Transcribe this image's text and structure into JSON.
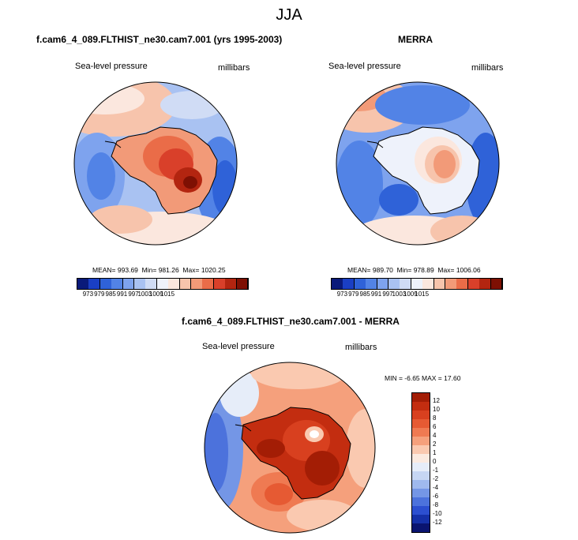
{
  "figure": {
    "title": "JJA"
  },
  "panels": [
    {
      "title": "f.cam6_4_089.FLTHIST_ne30.cam7.001 (yrs 1995-2003)",
      "variable": "Sea-level pressure",
      "units": "millibars",
      "stats": {
        "mean_label": "MEAN=",
        "mean": "993.69",
        "min_label": "Min=",
        "min": "981.26",
        "max_label": "Max=",
        "max": "1020.25"
      }
    },
    {
      "title": "MERRA",
      "variable": "Sea-level pressure",
      "units": "millibars",
      "stats": {
        "mean_label": "MEAN=",
        "mean": "989.70",
        "min_label": "Min=",
        "min": "978.89",
        "max_label": "Max=",
        "max": "1006.06"
      }
    },
    {
      "title": "f.cam6_4_089.FLTHIST_ne30.cam7.001 - MERRA",
      "variable": "Sea-level pressure",
      "units": "millibars",
      "stats": {
        "min_label": "MIN =",
        "min": "-6.65",
        "max_label": "MAX =",
        "max": "17.60"
      }
    }
  ],
  "colorbars": {
    "abs_ticks": [
      "973",
      "979",
      "985",
      "991",
      "997",
      "1003",
      "1009",
      "1015"
    ],
    "abs_colors": [
      "#0a1a7a",
      "#1a3fc4",
      "#2f62d8",
      "#5283e6",
      "#7ea3ee",
      "#a9c2f2",
      "#d0dcf5",
      "#eef2fb",
      "#fbe7de",
      "#f7c4ac",
      "#f29a78",
      "#ea6c48",
      "#d9402a",
      "#b32510",
      "#7e1003"
    ],
    "diff_ticks": [
      "12",
      "10",
      "8",
      "6",
      "4",
      "2",
      "1",
      "0",
      "-1",
      "-2",
      "-4",
      "-6",
      "-8",
      "-10",
      "-12"
    ],
    "diff_colors": [
      "#a31d05",
      "#c32d10",
      "#d8401f",
      "#e65a33",
      "#ef7a52",
      "#f5a07c",
      "#fac9b0",
      "#fbeae0",
      "#e6edf9",
      "#c6d6f3",
      "#9fb9ee",
      "#7496e6",
      "#4c72dc",
      "#2c4fd0",
      "#1530a8",
      "#0a1470"
    ]
  },
  "colors": {
    "coast": "#000000",
    "ocean_base": "#b9cef4"
  }
}
